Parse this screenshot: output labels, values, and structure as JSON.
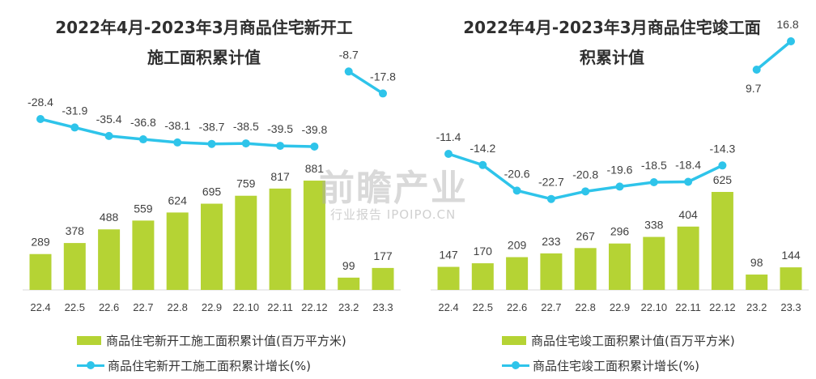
{
  "chart_data": [
    {
      "type": "bar",
      "title": "2022年4月-2023年3月商品住宅新开工",
      "subtitle": "施工面积累计值",
      "categories": [
        "22.4",
        "22.5",
        "22.6",
        "22.7",
        "22.8",
        "22.9",
        "22.10",
        "22.11",
        "22.12",
        "23.2",
        "23.3"
      ],
      "series": [
        {
          "name": "商品住宅新开工施工面积累计值(百万平方米)",
          "type": "bar",
          "color": "#b5d334",
          "values": [
            289,
            378,
            488,
            559,
            624,
            695,
            759,
            817,
            881,
            99,
            177
          ]
        },
        {
          "name": "商品住宅新开工施工面积累计增长(%)",
          "type": "line",
          "color": "#2ec4ea",
          "segments": [
            [
              0,
              8
            ],
            [
              9,
              10
            ]
          ],
          "values": [
            -28.4,
            -31.9,
            -35.4,
            -36.8,
            -38.1,
            -38.7,
            -38.5,
            -39.5,
            -39.8,
            -8.7,
            -17.8
          ]
        }
      ],
      "legend_position": "bottom"
    },
    {
      "type": "bar",
      "title": "2022年4月-2023年3月商品住宅竣工面",
      "subtitle": "积累计值",
      "categories": [
        "22.4",
        "22.5",
        "22.6",
        "22.7",
        "22.8",
        "22.9",
        "22.10",
        "22.11",
        "22.12",
        "23.2",
        "23.3"
      ],
      "series": [
        {
          "name": "商品住宅竣工面积累计值(百万平方米)",
          "type": "bar",
          "color": "#b5d334",
          "values": [
            147,
            170,
            209,
            233,
            267,
            296,
            338,
            404,
            625,
            98,
            144
          ]
        },
        {
          "name": "商品住宅竣工面积累计增长(%)",
          "type": "line",
          "color": "#2ec4ea",
          "segments": [
            [
              0,
              8
            ],
            [
              9,
              10
            ]
          ],
          "values": [
            -11.4,
            -14.2,
            -20.6,
            -22.7,
            -20.8,
            -19.6,
            -18.5,
            -18.4,
            -14.3,
            9.7,
            16.8
          ]
        }
      ],
      "legend_position": "bottom"
    }
  ],
  "watermark": {
    "main": "前瞻产业",
    "sub": "行业报告 IPOIPO.CN"
  }
}
